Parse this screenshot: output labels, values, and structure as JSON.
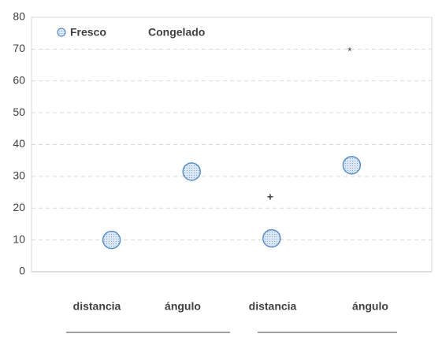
{
  "chart_data": {
    "type": "scatter",
    "categories": [
      "distancia",
      "ángulo",
      "distancia",
      "ángulo"
    ],
    "series": [
      {
        "name": "Fresco",
        "color": "#5b8fc7",
        "values": [
          10,
          31.5,
          10.5,
          33.5
        ]
      },
      {
        "name": "Congelado",
        "color": "none",
        "values": [
          null,
          null,
          null,
          null
        ]
      }
    ],
    "annotations": [
      "+",
      "*"
    ],
    "ylim": [
      0,
      80
    ],
    "yticks": [
      0,
      10,
      20,
      30,
      40,
      50,
      60,
      70,
      80
    ],
    "grid": true,
    "legend": "top-left"
  }
}
